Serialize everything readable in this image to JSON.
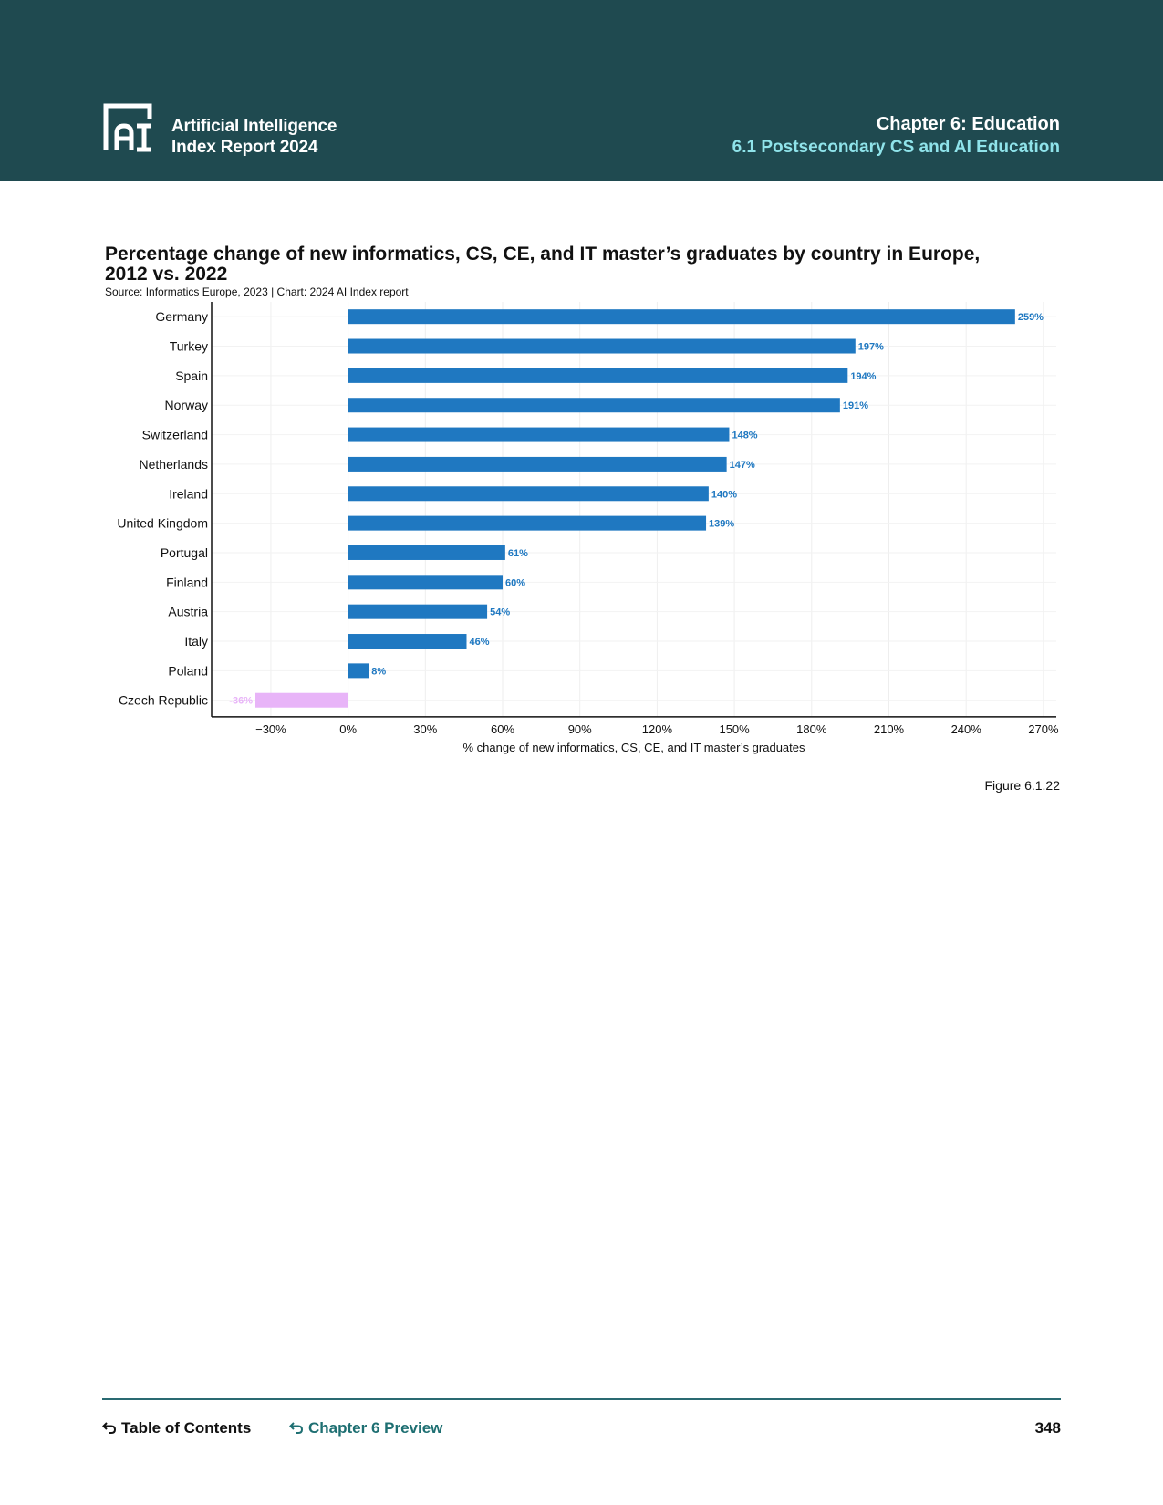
{
  "header": {
    "report_title_line1": "Artificial Intelligence",
    "report_title_line2": "Index Report 2024",
    "chapter": "Chapter 6: Education",
    "section": "6.1 Postsecondary CS and AI Education"
  },
  "figure": {
    "title_line1": "Percentage change of new informatics, CS, CE, and IT master’s graduates by country in Europe,",
    "title_line2": "2012 vs. 2022",
    "source": "Source: Informatics Europe, 2023 | Chart: 2024 AI Index report",
    "figure_number": "Figure 6.1.22"
  },
  "chart_data": {
    "type": "bar",
    "orientation": "horizontal",
    "title": "Percentage change of new informatics, CS, CE, and IT master’s graduates by country in Europe, 2012 vs. 2022",
    "xlabel": "% change of new informatics, CS, CE, and IT master’s graduates",
    "ylabel": "",
    "xlim": [
      -53,
      275
    ],
    "xticks": [
      -30,
      0,
      30,
      60,
      90,
      120,
      150,
      180,
      210,
      240,
      270
    ],
    "xtick_labels": [
      "−30%",
      "0%",
      "30%",
      "60%",
      "90%",
      "120%",
      "150%",
      "180%",
      "210%",
      "240%",
      "270%"
    ],
    "categories": [
      "Germany",
      "Turkey",
      "Spain",
      "Norway",
      "Switzerland",
      "Netherlands",
      "Ireland",
      "United Kingdom",
      "Portugal",
      "Finland",
      "Austria",
      "Italy",
      "Poland",
      "Czech Republic"
    ],
    "values": [
      259,
      197,
      194,
      191,
      148,
      147,
      140,
      139,
      61,
      60,
      54,
      46,
      8,
      -36
    ],
    "labels": [
      "259%",
      "197%",
      "194%",
      "191%",
      "148%",
      "147%",
      "140%",
      "139%",
      "61%",
      "60%",
      "54%",
      "46%",
      "8%",
      "-36%"
    ],
    "positive_color": "#1f78c1",
    "negative_color": "#e8b4f8",
    "grid": true
  },
  "footer": {
    "toc": "Table of Contents",
    "preview": "Chapter 6 Preview",
    "page_number": "348"
  }
}
